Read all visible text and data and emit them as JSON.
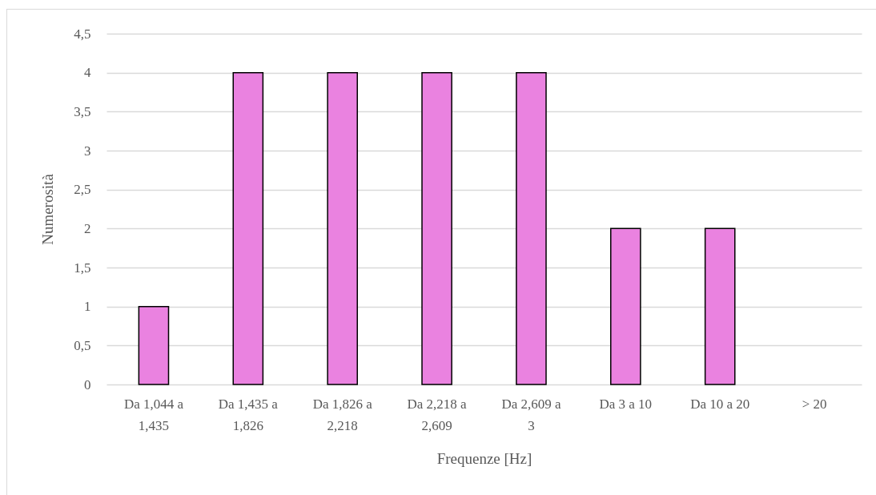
{
  "chart_data": {
    "type": "bar",
    "xlabel": "Frequenze [Hz]",
    "ylabel": "Numerosità",
    "categories": [
      "Da 1,044 a 1,435",
      "Da 1,435 a 1,826",
      "Da 1,826 a 2,218",
      "Da 2,218 a 2,609",
      "Da 2,609 a 3",
      "Da 3 a 10",
      "Da 10 a 20",
      "> 20"
    ],
    "values": [
      1,
      4,
      4,
      4,
      4,
      2,
      2,
      0
    ],
    "color": "#ea82e0",
    "ylim": [
      0,
      4.5
    ],
    "yticks": [
      0,
      {
        "value": 0.5,
        "label": "0,5"
      },
      1,
      {
        "value": 1.5,
        "label": "1,5"
      },
      2,
      {
        "value": 2.5,
        "label": "2,5"
      },
      3,
      {
        "value": 3.5,
        "label": "3,5"
      },
      4,
      {
        "value": 4.5,
        "label": "4,5"
      }
    ],
    "grid": "y"
  }
}
